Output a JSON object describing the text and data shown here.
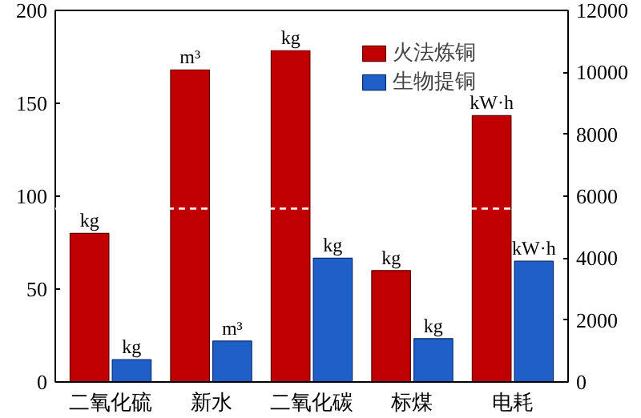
{
  "chart_data": {
    "type": "bar",
    "categories": [
      "二氧化硫",
      "新水",
      "二氧化碳",
      "标煤",
      "电耗"
    ],
    "series": [
      {
        "name": "火法炼铜",
        "color": "#c00000",
        "values": [
          80,
          168,
          null,
          null,
          null
        ],
        "value_labels": [
          "kg",
          "m³",
          null,
          null,
          null
        ]
      },
      {
        "name": "生物提铜",
        "color": "#1f5fc8",
        "values": [
          12,
          22,
          null,
          null,
          null
        ],
        "value_labels": [
          "kg",
          "m³",
          null,
          null,
          null
        ]
      },
      {
        "color": "#c00000",
        "axis": "y2",
        "values": [
          null,
          null,
          10700,
          3600,
          8600
        ],
        "value_labels": [
          null,
          null,
          "kg",
          "kg",
          "kW·h"
        ]
      },
      {
        "color": "#1f5fc8",
        "axis": "y2",
        "values": [
          null,
          null,
          4000,
          1400,
          3900
        ],
        "value_labels": [
          null,
          null,
          "kg",
          "kg",
          "kW·h"
        ]
      }
    ],
    "ylim": [
      0,
      200
    ],
    "yticks": [
      0,
      50,
      100,
      150,
      200
    ],
    "y2lim": [
      0,
      12000
    ],
    "y2ticks": [
      0,
      2000,
      4000,
      6000,
      8000,
      10000,
      12000
    ],
    "ref_lines": [
      {
        "axis": "y2",
        "value": 5600,
        "color": "#ffffff",
        "line_style": "dashed"
      }
    ],
    "legend": "top right",
    "grid": false
  }
}
